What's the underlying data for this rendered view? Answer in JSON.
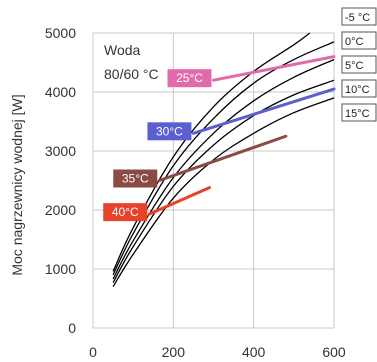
{
  "chart_data": {
    "type": "line",
    "ylabel": "Moc nagrzewnicy wodnej [W]",
    "xlabel": "",
    "xlim": [
      0,
      600
    ],
    "ylim": [
      0,
      5000
    ],
    "xticks": [
      "0",
      "200",
      "400",
      "600"
    ],
    "yticks": [
      "0",
      "1000",
      "2000",
      "3000",
      "4000",
      "5000"
    ],
    "grid": true,
    "annotation": {
      "line1": "Woda",
      "line2": "80/60 °C"
    },
    "series": [
      {
        "name": "-5 °C",
        "x": [
          50,
          100,
          200,
          300,
          400,
          500,
          540
        ],
        "y": [
          960,
          1700,
          2900,
          3750,
          4350,
          4800,
          5000
        ]
      },
      {
        "name": "0°C",
        "x": [
          50,
          100,
          200,
          300,
          400,
          500,
          600
        ],
        "y": [
          900,
          1600,
          2750,
          3550,
          4150,
          4550,
          4850
        ]
      },
      {
        "name": "5°C",
        "x": [
          50,
          100,
          200,
          300,
          400,
          500,
          600
        ],
        "y": [
          830,
          1480,
          2550,
          3300,
          3850,
          4250,
          4550
        ]
      },
      {
        "name": "10°C",
        "x": [
          50,
          100,
          200,
          300,
          400,
          500,
          600
        ],
        "y": [
          770,
          1380,
          2400,
          3100,
          3600,
          3950,
          4200
        ]
      },
      {
        "name": "15°C",
        "x": [
          50,
          100,
          200,
          300,
          400,
          500,
          600
        ],
        "y": [
          700,
          1250,
          2200,
          2850,
          3300,
          3650,
          3900
        ]
      }
    ],
    "supply_lines": [
      {
        "label": "25°C",
        "color": "#e06aaa",
        "x": [
          300,
          600
        ],
        "y": [
          4200,
          4600
        ]
      },
      {
        "label": "30°C",
        "color": "#5b5fcf",
        "x": [
          250,
          600
        ],
        "y": [
          3300,
          4050
        ]
      },
      {
        "label": "35°C",
        "color": "#8a4b44",
        "x": [
          165,
          480
        ],
        "y": [
          2500,
          3250
        ]
      },
      {
        "label": "40°C",
        "color": "#e8432a",
        "x": [
          140,
          290
        ],
        "y": [
          1930,
          2380
        ]
      }
    ]
  }
}
